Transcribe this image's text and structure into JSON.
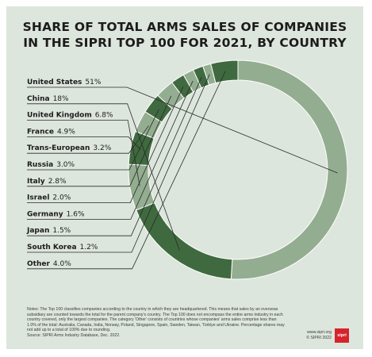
{
  "title_lines": [
    "SHARE OF TOTAL ARMS SALES OF COMPANIES",
    "IN THE SIPRI TOP 100 FOR 2021, BY COUNTRY"
  ],
  "chart_data": {
    "type": "pie",
    "title": "SHARE OF TOTAL ARMS SALES OF COMPANIES IN THE SIPRI TOP 100 FOR 2021, BY COUNTRY",
    "categories": [
      "United States",
      "China",
      "United Kingdom",
      "France",
      "Trans-European",
      "Russia",
      "Italy",
      "Israel",
      "Germany",
      "Japan",
      "South Korea",
      "Other"
    ],
    "values": [
      51,
      18,
      6.8,
      4.9,
      3.2,
      3.0,
      2.8,
      2.0,
      1.6,
      1.5,
      1.2,
      4.0
    ],
    "value_labels": [
      "51%",
      "18%",
      "6.8%",
      "4.9%",
      "3.2%",
      "3.0%",
      "2.8%",
      "2.0%",
      "1.6%",
      "1.5%",
      "1.2%",
      "4.0%"
    ],
    "unit": "%"
  },
  "colors": {
    "background": "#dde6dc",
    "dark": "#3f6a3f",
    "light": "#93ad90",
    "white_gap": "#ffffff",
    "logo": "#d6242c"
  },
  "notes": "Notes: The Top 100 classifies companies according to the country in which they are headquartered. This means that sales by an overseas subsidiary are counted towards the total for the parent company's country. The Top 100 does not encompass the entire arms industry in each country covered, only the largest companies. The category 'Other' consists of countries whose companies' arms sales comprise less than 1.0% of the total: Australia, Canada, India, Norway, Poland, Singapore, Spain, Sweden, Taiwan, Türkiye and Ukraine. Percentage shares may not add up to a total of 100% due to rounding.",
  "source": "Source: SIPRI Arms Industry Database, Dec. 2022.",
  "credit": [
    "www.sipri.org",
    "© SIPRI 2022"
  ],
  "logo_text": "sipri"
}
